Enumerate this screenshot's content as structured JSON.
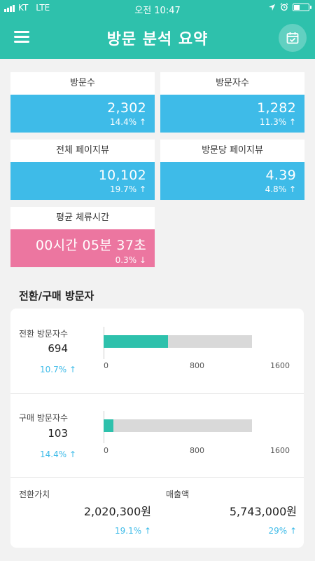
{
  "status_bar": {
    "carrier": "KT",
    "network": "LTE",
    "time": "오전 10:47",
    "battery_level": 0.35
  },
  "header": {
    "title": "방문 분석 요약"
  },
  "summary_cards": [
    {
      "label": "방문수",
      "value": "2,302",
      "change": "14.4%",
      "direction": "up",
      "color": "#3ebbe8"
    },
    {
      "label": "방문자수",
      "value": "1,282",
      "change": "11.3%",
      "direction": "up",
      "color": "#3ebbe8"
    },
    {
      "label": "전체 페이지뷰",
      "value": "10,102",
      "change": "19.7%",
      "direction": "up",
      "color": "#3ebbe8"
    },
    {
      "label": "방문당 페이지뷰",
      "value": "4.39",
      "change": "4.8%",
      "direction": "up",
      "color": "#3ebbe8"
    },
    {
      "label": "평균 체류시간",
      "value": "00시간 05분 37초",
      "change": "0.3%",
      "direction": "down",
      "color": "#ec76a0"
    }
  ],
  "conversion": {
    "title": "전환/구매 방문자",
    "axis_ticks": [
      "0",
      "800",
      "1600"
    ],
    "axis_max": 1600,
    "converted": {
      "label": "전환 방문자수",
      "value": "694",
      "bar_value": 694,
      "change": "10.7%",
      "direction": "up"
    },
    "purchased": {
      "label": "구매 방문자수",
      "value": "103",
      "bar_value": 103,
      "change": "14.4%",
      "direction": "up"
    },
    "conversion_value": {
      "label": "전환가치",
      "value": "2,020,300원",
      "change": "19.1%",
      "direction": "up"
    },
    "revenue": {
      "label": "매출액",
      "value": "5,743,000원",
      "change": "29%",
      "direction": "up"
    }
  },
  "icons": {
    "menu": "hamburger-menu-icon",
    "calendar": "calendar-check-icon",
    "up": "arrow-up-icon",
    "down": "arrow-down-icon"
  },
  "colors": {
    "primary": "#2ec1ac",
    "card_blue": "#3ebbe8",
    "card_pink": "#ec76a0",
    "bar_track": "#d9d9d9"
  }
}
